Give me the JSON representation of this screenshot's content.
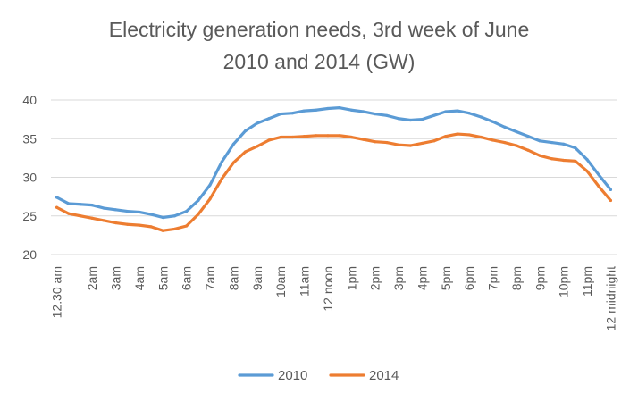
{
  "chart_data": {
    "type": "line",
    "title_line1": "Electricity generation needs, 3rd week of June",
    "title_line2": "2010 and 2014 (GW)",
    "xlabel": "",
    "ylabel": "",
    "ylim": [
      20,
      40
    ],
    "yticks": [
      20,
      25,
      30,
      35,
      40
    ],
    "grid": true,
    "legend_position": "bottom",
    "x_tick_labels": [
      "12.30 am",
      "2am",
      "3am",
      "4am",
      "5am",
      "6am",
      "7am",
      "8am",
      "9am",
      "10am",
      "11am",
      "12 noon",
      "1pm",
      "2pm",
      "3pm",
      "4pm",
      "5pm",
      "6pm",
      "7pm",
      "8pm",
      "9pm",
      "10pm",
      "11pm",
      "12 midnight"
    ],
    "x_tick_positions": [
      1,
      4,
      6,
      8,
      10,
      12,
      14,
      16,
      18,
      20,
      22,
      24,
      26,
      28,
      30,
      32,
      34,
      36,
      38,
      40,
      42,
      44,
      46,
      48
    ],
    "x": [
      1,
      2,
      3,
      4,
      5,
      6,
      7,
      8,
      9,
      10,
      11,
      12,
      13,
      14,
      15,
      16,
      17,
      18,
      19,
      20,
      21,
      22,
      23,
      24,
      25,
      26,
      27,
      28,
      29,
      30,
      31,
      32,
      33,
      34,
      35,
      36,
      37,
      38,
      39,
      40,
      41,
      42,
      43,
      44,
      45,
      46,
      47,
      48
    ],
    "series": [
      {
        "name": "2010",
        "color": "#5B9BD5",
        "values": [
          27.4,
          26.6,
          26.5,
          26.4,
          26.0,
          25.8,
          25.6,
          25.5,
          25.2,
          24.8,
          25.0,
          25.6,
          27.0,
          29.0,
          32.0,
          34.3,
          36.0,
          37.0,
          37.6,
          38.2,
          38.3,
          38.6,
          38.7,
          38.9,
          39.0,
          38.7,
          38.5,
          38.2,
          38.0,
          37.6,
          37.4,
          37.5,
          38.0,
          38.5,
          38.6,
          38.3,
          37.8,
          37.2,
          36.5,
          35.9,
          35.3,
          34.7,
          34.5,
          34.3,
          33.8,
          32.3,
          30.3,
          28.4
        ]
      },
      {
        "name": "2014",
        "color": "#ED7D31",
        "values": [
          26.1,
          25.3,
          25.0,
          24.7,
          24.4,
          24.1,
          23.9,
          23.8,
          23.6,
          23.1,
          23.3,
          23.7,
          25.2,
          27.2,
          29.8,
          31.9,
          33.3,
          34.0,
          34.8,
          35.2,
          35.2,
          35.3,
          35.4,
          35.4,
          35.4,
          35.2,
          34.9,
          34.6,
          34.5,
          34.2,
          34.1,
          34.4,
          34.7,
          35.3,
          35.6,
          35.5,
          35.2,
          34.8,
          34.5,
          34.1,
          33.5,
          32.8,
          32.4,
          32.2,
          32.1,
          30.8,
          28.8,
          27.0
        ]
      }
    ]
  }
}
